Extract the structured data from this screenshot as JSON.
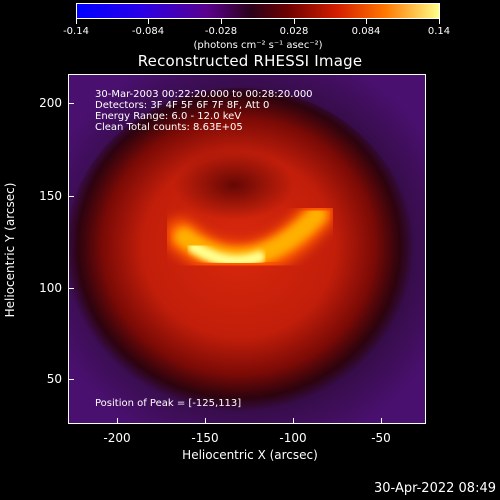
{
  "colorbar": {
    "ticks": [
      "-0.14",
      "-0.084",
      "-0.028",
      "0.028",
      "0.084",
      "0.14"
    ],
    "units": "(photons cm⁻² s⁻¹ asec⁻²)"
  },
  "plot": {
    "title": "Reconstructed RHESSI Image",
    "info_lines": [
      "30-Mar-2003 00:22:20.000 to 00:28:20.000",
      "Detectors: 3F 4F 5F 6F 7F 8F, Att 0",
      "Energy Range: 6.0 - 12.0 keV",
      "Clean     Total counts: 8.63E+05"
    ],
    "peak_text": "Position of Peak = [-125,113]",
    "x_axis_title": "Heliocentric X (arcsec)",
    "y_axis_title": "Heliocentric Y (arcsec)",
    "x_ticks": [
      "-200",
      "-150",
      "-100",
      "-50"
    ],
    "y_ticks": [
      "200",
      "150",
      "100",
      "50"
    ],
    "colors": {
      "background": "#000000",
      "frame": "#ffffff",
      "image_edge": "#3a0a55",
      "image_mid": "#c81e0a",
      "image_peak": "#ffff99"
    }
  },
  "footer": {
    "timestamp": "30-Apr-2022 08:49"
  }
}
